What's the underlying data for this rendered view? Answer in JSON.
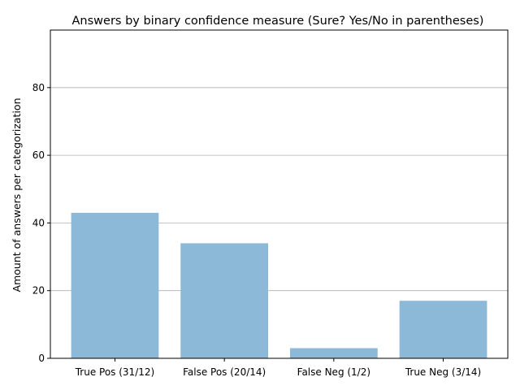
{
  "chart_data": {
    "type": "bar",
    "title": "Answers by binary confidence measure (Sure? Yes/No in parentheses)",
    "xlabel": "",
    "ylabel": "Amount of answers per categorization",
    "categories": [
      "True Pos (31/12)",
      "False Pos (20/14)",
      "False Neg (1/2)",
      "True Neg (3/14)"
    ],
    "values": [
      43,
      34,
      3,
      17
    ],
    "ylim": [
      0,
      97
    ],
    "yticks": [
      0,
      20,
      40,
      60,
      80
    ],
    "grid": "y",
    "bar_color": "#8db9d9"
  }
}
